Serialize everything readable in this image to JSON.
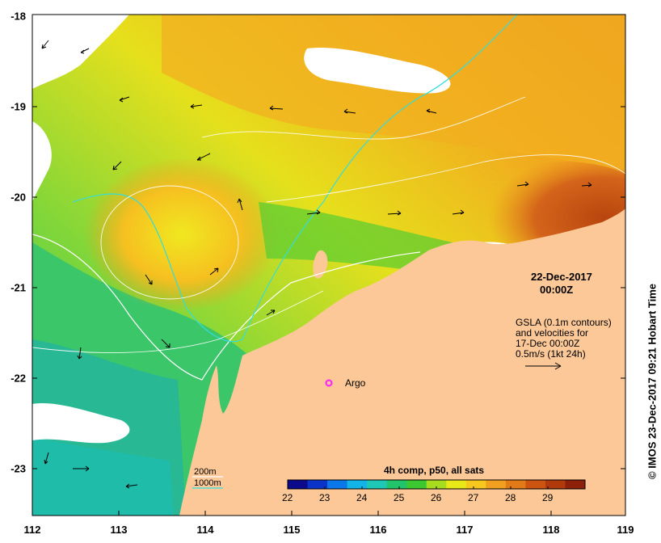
{
  "map": {
    "date": "22-Dec-2017",
    "time": "00:00Z",
    "legend_lines": [
      "GSLA (0.1m contours)",
      "and velocities for",
      "17-Dec 00:00Z",
      "0.5m/s (1kt 24h)"
    ],
    "argo_label": "Argo",
    "isobaths": [
      {
        "label": "200m",
        "color": "#ffffff"
      },
      {
        "label": "1000m",
        "color": "#33dddd"
      }
    ],
    "colorbar": {
      "title": "4h comp, p50, all sats",
      "min": 22,
      "max": 30,
      "ticks": [
        "22",
        "23",
        "24",
        "25",
        "26",
        "27",
        "28",
        "29"
      ],
      "colors": [
        "#0a0a8a",
        "#0b33c8",
        "#0a78e8",
        "#12b4e8",
        "#1fc8b4",
        "#22c46a",
        "#3cc830",
        "#a8dc1e",
        "#e8e818",
        "#f6c81e",
        "#f0a01e",
        "#e27a18",
        "#cc5410",
        "#b03a0c",
        "#8c2008"
      ]
    },
    "x_ticks": [
      "112",
      "113",
      "114",
      "115",
      "116",
      "117",
      "118",
      "119"
    ],
    "y_ticks": [
      "-18",
      "-19",
      "-20",
      "-21",
      "-22",
      "-23"
    ],
    "credit": "© IMOS 23-Dec-2017 09:21 Hobart Time",
    "colors": {
      "land": "#fcc898",
      "argo": "#ff20ff"
    }
  }
}
